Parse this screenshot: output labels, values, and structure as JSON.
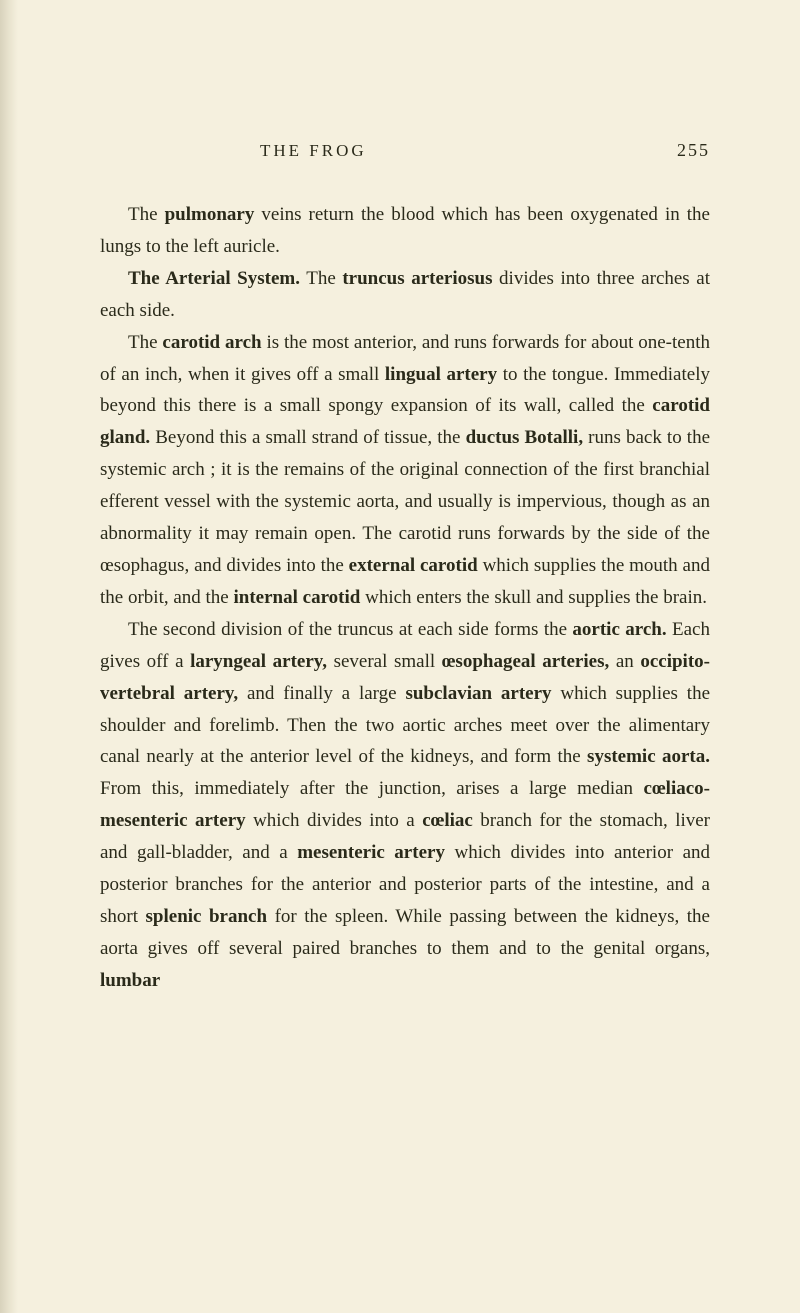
{
  "header": {
    "running_head": "THE FROG",
    "page_number": "255"
  },
  "paragraphs": {
    "p1_parts": [
      {
        "text": "The ",
        "bold": false
      },
      {
        "text": "pulmonary",
        "bold": true
      },
      {
        "text": " veins return the blood which has been oxygenated in the lungs to the left auricle.",
        "bold": false
      }
    ],
    "p2_parts": [
      {
        "text": "The Arterial System.",
        "bold": true
      },
      {
        "text": " The ",
        "bold": false
      },
      {
        "text": "truncus arteriosus",
        "bold": true
      },
      {
        "text": " divides into three arches at each side.",
        "bold": false
      }
    ],
    "p3_parts": [
      {
        "text": "The ",
        "bold": false
      },
      {
        "text": "carotid arch",
        "bold": true
      },
      {
        "text": " is the most anterior, and runs forwards for about one-tenth of an inch, when it gives off a small ",
        "bold": false
      },
      {
        "text": "lingual artery",
        "bold": true
      },
      {
        "text": " to the tongue. Immediately beyond this there is a small spongy expansion of its wall, called the ",
        "bold": false
      },
      {
        "text": "carotid gland.",
        "bold": true
      },
      {
        "text": " Beyond this a small strand of tissue, the ",
        "bold": false
      },
      {
        "text": "ductus Botalli,",
        "bold": true
      },
      {
        "text": " runs back to the systemic arch ; it is the remains of the original connection of the first branchial efferent vessel with the systemic aorta, and usually is impervious, though as an abnormality it may remain open. The carotid runs forwards by the side of the œsophagus, and divides into the ",
        "bold": false
      },
      {
        "text": "external carotid",
        "bold": true
      },
      {
        "text": " which supplies the mouth and the orbit, and the ",
        "bold": false
      },
      {
        "text": "internal carotid",
        "bold": true
      },
      {
        "text": " which enters the skull and supplies the brain.",
        "bold": false
      }
    ],
    "p4_parts": [
      {
        "text": "The second division of the truncus at each side forms the ",
        "bold": false
      },
      {
        "text": "aortic arch.",
        "bold": true
      },
      {
        "text": " Each gives off a ",
        "bold": false
      },
      {
        "text": "laryngeal artery,",
        "bold": true
      },
      {
        "text": " several small ",
        "bold": false
      },
      {
        "text": "œsophageal arteries,",
        "bold": true
      },
      {
        "text": " an ",
        "bold": false
      },
      {
        "text": "occipito-vertebral artery,",
        "bold": true
      },
      {
        "text": " and finally a large ",
        "bold": false
      },
      {
        "text": "subclavian artery",
        "bold": true
      },
      {
        "text": " which supplies the shoulder and forelimb. Then the two aortic arches meet over the alimentary canal nearly at the anterior level of the kidneys, and form the ",
        "bold": false
      },
      {
        "text": "systemic aorta.",
        "bold": true
      },
      {
        "text": " From this, immediately after the junction, arises a large median ",
        "bold": false
      },
      {
        "text": "cœliaco-mesenteric artery",
        "bold": true
      },
      {
        "text": " which divides into a ",
        "bold": false
      },
      {
        "text": "cœliac",
        "bold": true
      },
      {
        "text": " branch for the stomach, liver and gall-bladder, and a ",
        "bold": false
      },
      {
        "text": "mesenteric artery",
        "bold": true
      },
      {
        "text": " which divides into anterior and posterior branches for the anterior and posterior parts of the intestine, and a short ",
        "bold": false
      },
      {
        "text": "splenic branch",
        "bold": true
      },
      {
        "text": " for the spleen. While passing between the kidneys, the aorta gives off several paired branches to them and to the genital organs, ",
        "bold": false
      },
      {
        "text": "lumbar",
        "bold": true
      }
    ]
  }
}
